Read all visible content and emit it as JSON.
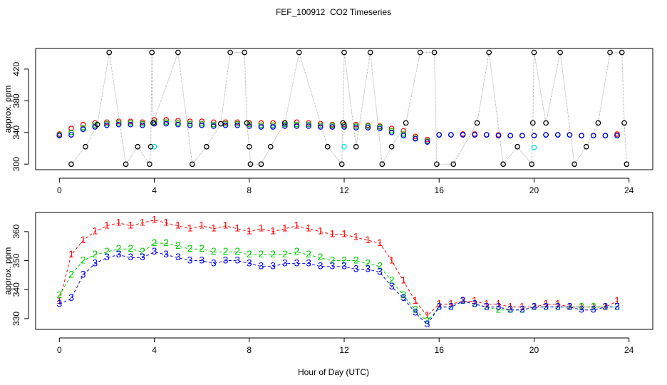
{
  "chart_data": [
    {
      "type": "scatter",
      "title": "FEF_100912  CO2 Timeseries",
      "ylabel": "approx. ppm",
      "xlim": [
        -1,
        25
      ],
      "xticks": [
        0,
        4,
        8,
        12,
        16,
        20,
        24
      ],
      "ylim": [
        293,
        446
      ],
      "yticks": [
        300,
        340,
        380,
        420
      ],
      "x": [
        0,
        0.5,
        1,
        1.5,
        2,
        2.5,
        3,
        3.5,
        4,
        4.5,
        5,
        5.5,
        6,
        6.5,
        7,
        7.5,
        8,
        8.5,
        9,
        9.5,
        10,
        10.5,
        11,
        11.5,
        12,
        12.5,
        13,
        13.5,
        14,
        14.5,
        15,
        15.5,
        16,
        16.5,
        17,
        17.5,
        18,
        18.5,
        19,
        19.5,
        20,
        20.5,
        21,
        21.5,
        22,
        22.5,
        23,
        23.5
      ],
      "series": [
        {
          "color": "#ff0000",
          "values": [
            338,
            345,
            350,
            352,
            353,
            354,
            354,
            353,
            356,
            356,
            355,
            354,
            354,
            353,
            353,
            353,
            352,
            352,
            352,
            352,
            353,
            352,
            351,
            350,
            350,
            350,
            349,
            348,
            345,
            342,
            335,
            331,
            337,
            337,
            338,
            338,
            337,
            337,
            336,
            336,
            336,
            337,
            337,
            337,
            336,
            336,
            336,
            338
          ]
        },
        {
          "color": "#00cc00",
          "values": [
            337,
            340,
            346,
            349,
            351,
            352,
            352,
            351,
            353,
            353,
            352,
            351,
            351,
            350,
            351,
            351,
            350,
            349,
            349,
            350,
            350,
            350,
            349,
            349,
            349,
            348,
            348,
            347,
            342,
            338,
            333,
            329,
            337,
            337,
            337,
            337,
            337,
            336,
            336,
            336,
            336,
            337,
            337,
            337,
            336,
            336,
            336,
            336
          ]
        },
        {
          "color": "#0000ff",
          "values": [
            336,
            337,
            344,
            347,
            349,
            350,
            350,
            349,
            351,
            351,
            350,
            349,
            349,
            348,
            349,
            349,
            348,
            347,
            347,
            348,
            348,
            348,
            347,
            347,
            347,
            346,
            346,
            345,
            340,
            336,
            332,
            328,
            337,
            337,
            337,
            337,
            337,
            336,
            336,
            336,
            336,
            337,
            337,
            337,
            336,
            336,
            336,
            336
          ]
        },
        {
          "color": "#000000",
          "line_color": "#aaaaaa",
          "x": [
            0.5,
            1.1,
            1.6,
            2.1,
            2.8,
            3.3,
            3.8,
            3.85,
            3.9,
            3.95,
            5,
            5.6,
            6.2,
            6.8,
            7.2,
            7.8,
            7.9,
            8,
            8.05,
            8.5,
            8.9,
            9.5,
            10.1,
            11.3,
            11.9,
            11.95,
            12,
            12.5,
            13.1,
            13.6,
            14,
            14.6,
            15.2,
            15.8,
            15.9,
            16.6,
            17.6,
            18.1,
            18.7,
            19.3,
            19.9,
            19.95,
            20,
            20.5,
            21.1,
            21.7,
            22.2,
            22.7,
            23.2,
            23.7,
            23.8,
            23.9
          ],
          "values": [
            300,
            322,
            350,
            441,
            300,
            322,
            300,
            322,
            441,
            352,
            441,
            300,
            322,
            351,
            441,
            441,
            352,
            322,
            300,
            300,
            322,
            352,
            441,
            322,
            300,
            352,
            441,
            322,
            441,
            300,
            322,
            352,
            441,
            441,
            300,
            300,
            352,
            441,
            300,
            322,
            300,
            352,
            441,
            352,
            441,
            300,
            322,
            352,
            441,
            441,
            352,
            300
          ]
        },
        {
          "color": "#00e5ee",
          "x": [
            4,
            12,
            20
          ],
          "values": [
            322,
            322,
            321
          ]
        }
      ]
    },
    {
      "type": "text-scatter",
      "ylabel": "approx. ppm",
      "xlabel": "Hour of Day (UTC)",
      "xlim": [
        -1,
        25
      ],
      "xticks": [
        0,
        4,
        8,
        12,
        16,
        20,
        24
      ],
      "ylim": [
        326.3,
        366.6
      ],
      "yticks": [
        330,
        340,
        350,
        360
      ],
      "x": [
        0,
        0.5,
        1,
        1.5,
        2,
        2.5,
        3,
        3.5,
        4,
        4.5,
        5,
        5.5,
        6,
        6.5,
        7,
        7.5,
        8,
        8.5,
        9,
        9.5,
        10,
        10.5,
        11,
        11.5,
        12,
        12.5,
        13,
        13.5,
        14,
        14.5,
        15,
        15.5,
        16,
        16.5,
        17,
        17.5,
        18,
        18.5,
        19,
        19.5,
        20,
        20.5,
        21,
        21.5,
        22,
        22.5,
        23,
        23.5
      ],
      "series": [
        {
          "marker": "1",
          "color": "#ff0000",
          "values": [
            336,
            352,
            357,
            360,
            362,
            363,
            362,
            363,
            364,
            363,
            362,
            361,
            362,
            361,
            362,
            361,
            360,
            361,
            360,
            361,
            362,
            361,
            360,
            359,
            359,
            358,
            357,
            356,
            350,
            343,
            336,
            331,
            335,
            335,
            336,
            336,
            335,
            335,
            334,
            334,
            334,
            335,
            335,
            334,
            334,
            334,
            334,
            336
          ]
        },
        {
          "marker": "2",
          "color": "#00cc00",
          "values": [
            338,
            345,
            350,
            352,
            353,
            354,
            354,
            353,
            356,
            356,
            355,
            354,
            354,
            353,
            353,
            353,
            352,
            352,
            352,
            352,
            353,
            352,
            351,
            350,
            350,
            350,
            349,
            348,
            343,
            338,
            333,
            329,
            334,
            334,
            336,
            335,
            334,
            333,
            333,
            333,
            334,
            334,
            334,
            334,
            334,
            334,
            334,
            334
          ]
        },
        {
          "marker": "3",
          "color": "#0000ff",
          "values": [
            335,
            337,
            345,
            349,
            351,
            352,
            351,
            351,
            353,
            352,
            351,
            350,
            350,
            349,
            350,
            350,
            349,
            348,
            348,
            349,
            349,
            349,
            348,
            348,
            348,
            347,
            347,
            346,
            341,
            337,
            332,
            328,
            334,
            334,
            336,
            335,
            334,
            334,
            333,
            333,
            334,
            334,
            334,
            334,
            333,
            333,
            334,
            334
          ]
        }
      ]
    }
  ]
}
